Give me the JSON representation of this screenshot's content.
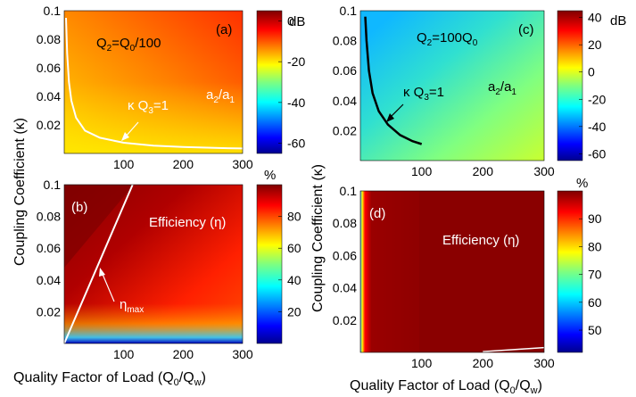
{
  "figure": {
    "ylabel_left": "Coupling Coefficient (κ)",
    "ylabel_right": "Coupling Coefficient (κ)",
    "xlabel_left": "Quality Factor of Load (Q",
    "xlabel_right": "Quality Factor of Load (Q"
  },
  "colors": {
    "map": [
      "#00008f",
      "#0000ff",
      "#007fff",
      "#00ffff",
      "#7fff7f",
      "#ffff00",
      "#ff7f00",
      "#ff0000",
      "#7f0000"
    ],
    "curve_white": "#ffffff",
    "curve_black": "#000000"
  },
  "chart_data": [
    {
      "type": "heatmap",
      "panel": "(a)",
      "annotation": "Q2=Q0/100",
      "ratio_label": "a2/a1",
      "curve_label": "κ Q3=1",
      "xlim": [
        0,
        300
      ],
      "ylim": [
        0,
        0.1
      ],
      "xticks": [
        100,
        200,
        300
      ],
      "yticks": [
        0.02,
        0.04,
        0.06,
        0.08,
        0.1
      ],
      "colorbar": {
        "ticks": [
          0,
          -20,
          -40,
          -60
        ],
        "unit": "dB",
        "range": [
          -65,
          5
        ]
      },
      "curve": {
        "x": [
          3,
          5,
          8,
          12,
          20,
          35,
          60,
          100,
          150,
          200,
          260,
          300
        ],
        "y": [
          0.095,
          0.07,
          0.05,
          0.037,
          0.025,
          0.016,
          0.011,
          0.0075,
          0.0055,
          0.0045,
          0.0038,
          0.0035
        ]
      }
    },
    {
      "type": "heatmap",
      "panel": "(c)",
      "annotation": "Q2=100Q0",
      "ratio_label": "a2/a1",
      "curve_label": "κ Q3=1",
      "xlim": [
        0,
        300
      ],
      "ylim": [
        0,
        0.1
      ],
      "xticks": [
        100,
        200,
        300
      ],
      "yticks": [
        0.02,
        0.04,
        0.06,
        0.08,
        0.1
      ],
      "colorbar": {
        "ticks": [
          40,
          20,
          0,
          -20,
          -40,
          -60
        ],
        "unit": "dB",
        "range": [
          -65,
          45
        ]
      },
      "curve": {
        "x": [
          8,
          10,
          14,
          20,
          30,
          45,
          65,
          85,
          100
        ],
        "y": [
          0.096,
          0.08,
          0.06,
          0.045,
          0.033,
          0.024,
          0.017,
          0.013,
          0.011
        ]
      }
    },
    {
      "type": "heatmap",
      "panel": "(b)",
      "annotation": "Efficiency (η)",
      "curve_label": "ηmax",
      "xlim": [
        0,
        300
      ],
      "ylim": [
        0,
        0.1
      ],
      "xticks": [
        100,
        200,
        300
      ],
      "yticks": [
        0.02,
        0.04,
        0.06,
        0.08,
        0.1
      ],
      "colorbar": {
        "ticks": [
          80,
          60,
          40,
          20
        ],
        "unit": "%",
        "range": [
          0,
          100
        ]
      },
      "curve": {
        "x": [
          0,
          100,
          115
        ],
        "y": [
          0,
          0.087,
          0.1
        ]
      }
    },
    {
      "type": "heatmap",
      "panel": "(d)",
      "annotation": "Efficiency (η)",
      "xlim": [
        0,
        300
      ],
      "ylim": [
        0,
        0.1
      ],
      "xticks": [
        100,
        200,
        300
      ],
      "yticks": [
        0.02,
        0.04,
        0.06,
        0.08,
        0.1
      ],
      "colorbar": {
        "ticks": [
          90,
          80,
          70,
          60,
          50
        ],
        "unit": "%",
        "range": [
          42,
          100
        ]
      },
      "curve": {
        "x": [
          200,
          300
        ],
        "y": [
          0.0005,
          0.003
        ]
      }
    }
  ]
}
